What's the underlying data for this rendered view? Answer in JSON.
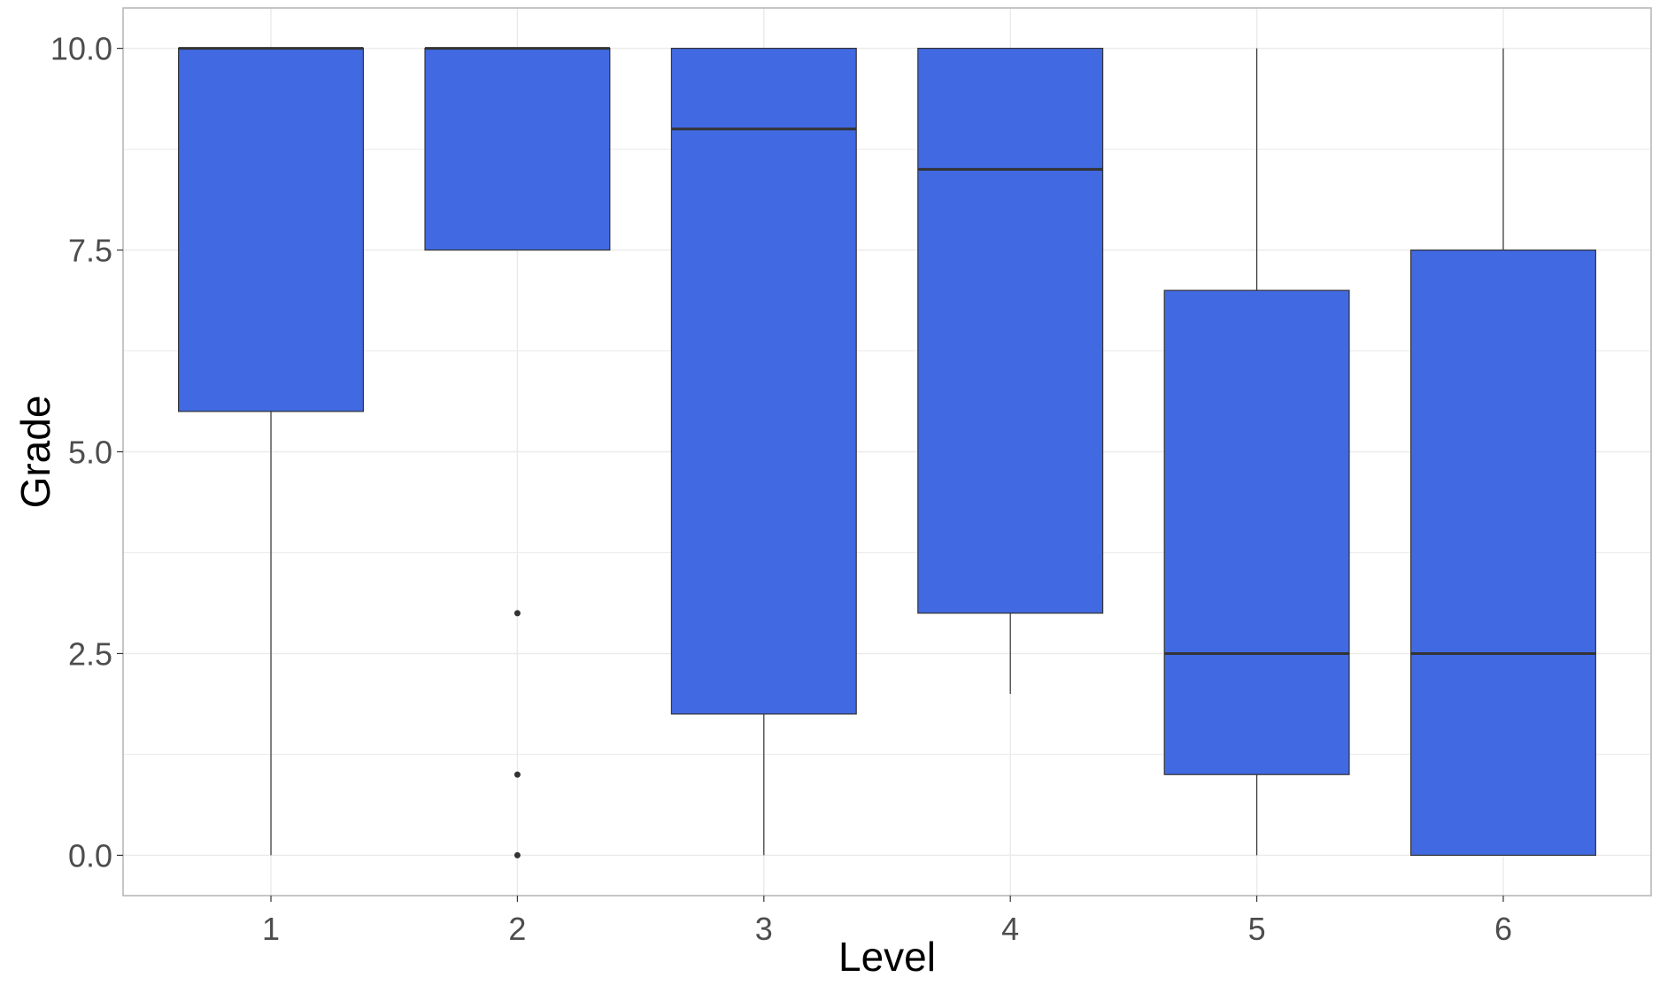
{
  "chart_data": {
    "type": "boxplot",
    "title": "",
    "xlabel": "Level",
    "ylabel": "Grade",
    "ylim": [
      -0.5,
      10.5
    ],
    "y_ticks": [
      0.0,
      2.5,
      5.0,
      7.5,
      10.0
    ],
    "y_tick_labels": [
      "0.0",
      "2.5",
      "5.0",
      "7.5",
      "10.0"
    ],
    "grid": true,
    "colors": {
      "box_fill": "#4169e1",
      "box_stroke": "#333333",
      "grid": "#ebebeb",
      "panel_border": "#b3b3b3"
    },
    "categories": [
      "1",
      "2",
      "3",
      "4",
      "5",
      "6"
    ],
    "boxes": [
      {
        "category": "1",
        "whisker_low": 0.0,
        "q1": 5.5,
        "median": 10.0,
        "q3": 10.0,
        "whisker_high": 10.0,
        "outliers": []
      },
      {
        "category": "2",
        "whisker_low": 7.5,
        "q1": 7.5,
        "median": 10.0,
        "q3": 10.0,
        "whisker_high": 10.0,
        "outliers": [
          3.0,
          1.0,
          0.0
        ]
      },
      {
        "category": "3",
        "whisker_low": 0.0,
        "q1": 1.75,
        "median": 9.0,
        "q3": 10.0,
        "whisker_high": 10.0,
        "outliers": []
      },
      {
        "category": "4",
        "whisker_low": 2.0,
        "q1": 3.0,
        "median": 8.5,
        "q3": 10.0,
        "whisker_high": 10.0,
        "outliers": []
      },
      {
        "category": "5",
        "whisker_low": 0.0,
        "q1": 1.0,
        "median": 2.5,
        "q3": 7.0,
        "whisker_high": 10.0,
        "outliers": []
      },
      {
        "category": "6",
        "whisker_low": 0.0,
        "q1": 0.0,
        "median": 2.5,
        "q3": 7.5,
        "whisker_high": 10.0,
        "outliers": []
      }
    ]
  }
}
